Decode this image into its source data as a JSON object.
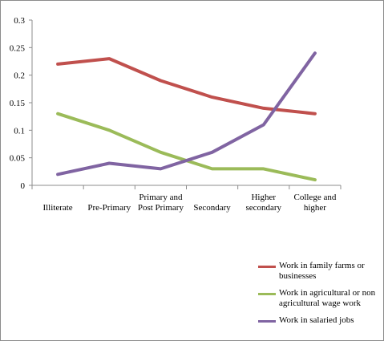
{
  "chart_data": {
    "type": "line",
    "categories": [
      "Illiterate",
      "Pre-Primary",
      "Primary and\nPost Primary",
      "Secondary",
      "Higher\nsecondary",
      "College and\nhigher"
    ],
    "ylim": [
      0,
      0.3
    ],
    "yticks": [
      "0",
      "0.05",
      "0.1",
      "0.15",
      "0.2",
      "0.25",
      "0.3"
    ],
    "grid": false,
    "legend_position": "bottom-right",
    "series": [
      {
        "name": "Work in family farms or businesses",
        "color": "#c0504d",
        "values": [
          0.22,
          0.23,
          0.19,
          0.16,
          0.14,
          0.13
        ]
      },
      {
        "name": "Work in agricultural or non agricultural wage work",
        "color": "#9bbb59",
        "values": [
          0.13,
          0.1,
          0.06,
          0.03,
          0.03,
          0.01
        ]
      },
      {
        "name": "Work in salaried jobs",
        "color": "#8064a2",
        "values": [
          0.02,
          0.04,
          0.03,
          0.06,
          0.11,
          0.24
        ]
      }
    ]
  }
}
